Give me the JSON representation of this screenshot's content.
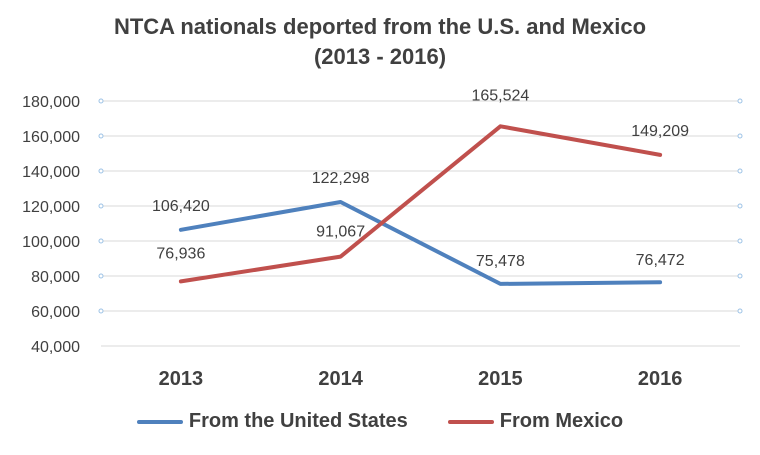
{
  "chart_data": {
    "type": "line",
    "title": "NTCA nationals deported from the U.S. and Mexico",
    "subtitle": "(2013 - 2016)",
    "categories": [
      "2013",
      "2014",
      "2015",
      "2016"
    ],
    "series": [
      {
        "name": "From the United States",
        "color": "#4f81bd",
        "values": [
          106420,
          122298,
          75478,
          76472
        ]
      },
      {
        "name": "From Mexico",
        "color": "#c0504d",
        "values": [
          76936,
          91067,
          165524,
          149209
        ]
      }
    ],
    "data_labels": {
      "From the United States": [
        "106,420",
        "122,298",
        "75,478",
        "76,472"
      ],
      "From Mexico": [
        "76,936",
        "91,067",
        "165,524",
        "149,209"
      ]
    },
    "ylim": [
      40000,
      180000
    ],
    "yticks": [
      40000,
      60000,
      80000,
      100000,
      120000,
      140000,
      160000,
      180000
    ],
    "ytick_labels": [
      "40,000",
      "60,000",
      "80,000",
      "100,000",
      "120,000",
      "140,000",
      "160,000",
      "180,000"
    ],
    "grid": true,
    "legend_position": "bottom"
  }
}
